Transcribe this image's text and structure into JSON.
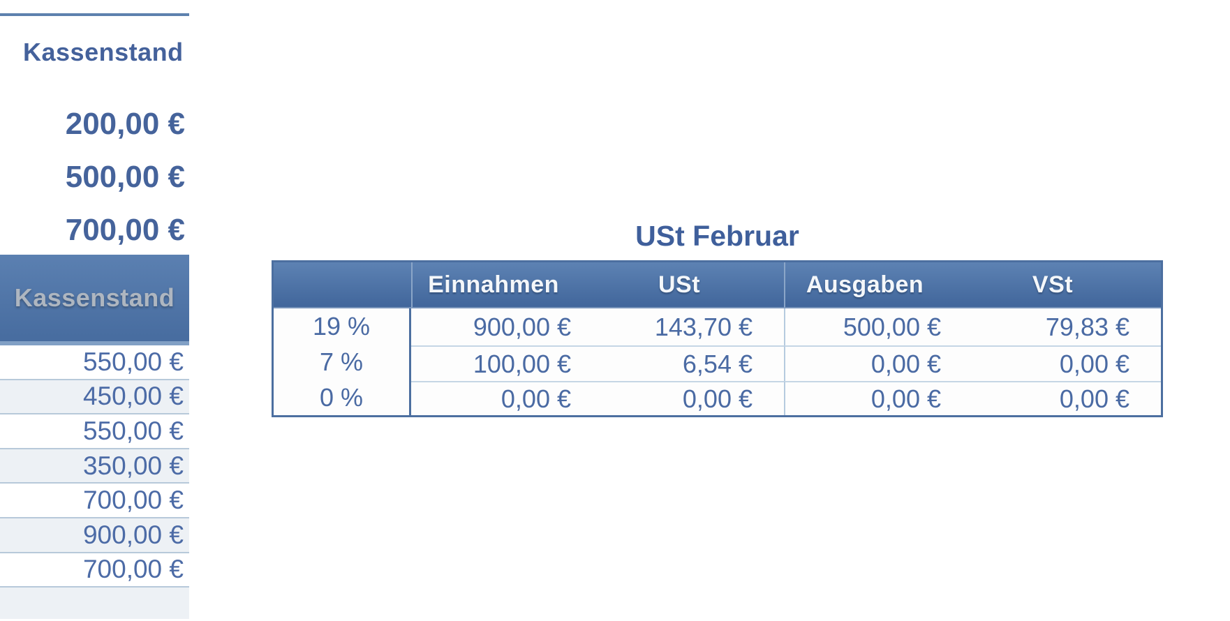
{
  "left_panel": {
    "title": "Kassenstand",
    "top_values": [
      "200,00 €",
      "500,00 €",
      "700,00 €"
    ],
    "header": "Kassenstand",
    "rows": [
      "550,00 €",
      "450,00 €",
      "550,00 €",
      "350,00 €",
      "700,00 €",
      "900,00 €",
      "700,00 €"
    ]
  },
  "main_table": {
    "title": "USt Februar",
    "columns": {
      "c1": "",
      "c2": "Einnahmen",
      "c3": "USt",
      "c4": "Ausgaben",
      "c5": "VSt"
    },
    "rows": [
      {
        "rate": "19 %",
        "einnahmen": "900,00 €",
        "ust": "143,70 €",
        "ausgaben": "500,00 €",
        "vst": "79,83 €"
      },
      {
        "rate": "7 %",
        "einnahmen": "100,00 €",
        "ust": "6,54 €",
        "ausgaben": "0,00 €",
        "vst": "0,00 €"
      },
      {
        "rate": "0 %",
        "einnahmen": "0,00 €",
        "ust": "0,00 €",
        "ausgaben": "0,00 €",
        "vst": "0,00 €"
      }
    ]
  },
  "colors": {
    "header_gradient_top": "#5d82b3",
    "header_gradient_bottom": "#41669b",
    "accent_blue_text": "#4a6aa3",
    "title_blue": "#3f5f9b",
    "row_alt_background": "#edf1f5",
    "light_separator": "#c5d6e5",
    "dark_border": "#4c6fa0",
    "top_rule": "#5d81ae",
    "embossed_header_text": "#aeb6c0"
  }
}
